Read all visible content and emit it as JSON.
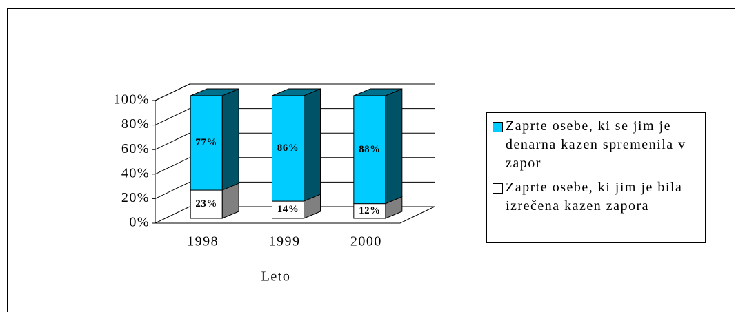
{
  "chart_data": {
    "type": "bar3d_stacked",
    "categories": [
      "1998",
      "1999",
      "2000"
    ],
    "x_label": "Leto",
    "series": [
      {
        "name": "Zaprte osebe, ki jim je bila izrečena kazen zapora",
        "color": "#ffffff",
        "values": [
          23,
          14,
          12
        ],
        "value_labels": [
          "23%",
          "14%",
          "12%"
        ]
      },
      {
        "name": "Zaprte osebe, ki se jim je denarna kazen spremenila v zapor",
        "color": "#00ccff",
        "values": [
          77,
          86,
          88
        ],
        "value_labels": [
          "77%",
          "86%",
          "88%"
        ]
      }
    ],
    "ylim": [
      0,
      100
    ],
    "yticks": [
      {
        "value": 0,
        "label": "0%"
      },
      {
        "value": 20,
        "label": "20%"
      },
      {
        "value": 40,
        "label": "40%"
      },
      {
        "value": 60,
        "label": "60%"
      },
      {
        "value": 80,
        "label": "80%"
      },
      {
        "value": 100,
        "label": "100%"
      }
    ],
    "grid": true,
    "legend": "right"
  }
}
